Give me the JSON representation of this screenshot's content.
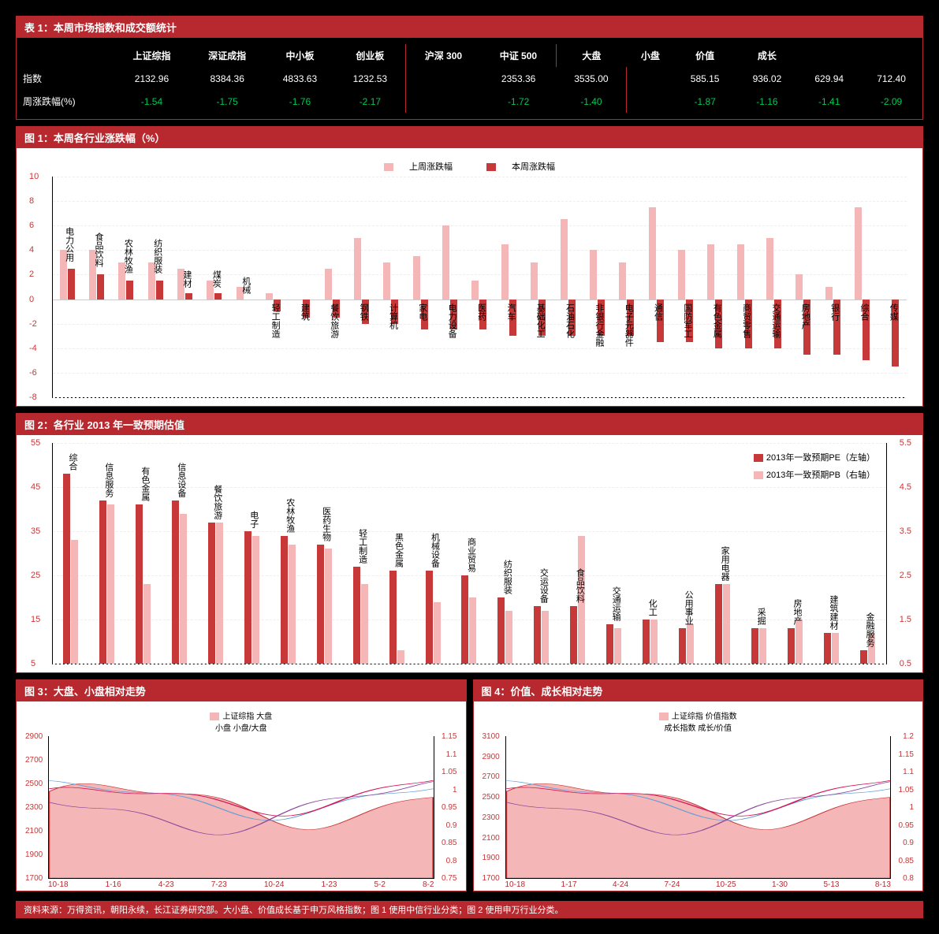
{
  "table1": {
    "title": "表 1：本周市场指数和成交额统计",
    "sections": [
      {
        "cols": [
          "上证综指",
          "深证成指",
          "中小板",
          "创业板"
        ],
        "rows": [
          [
            "指数",
            "2132.96",
            "8384.36",
            "4833.63",
            "1232.53"
          ],
          [
            "周涨跌幅(%)",
            "-1.54",
            "-1.75",
            "-1.76",
            "-2.17"
          ]
        ]
      },
      {
        "cols": [
          "沪深 300",
          "中证 500"
        ],
        "rows": [
          [
            "",
            "2353.36",
            "3535.00"
          ],
          [
            "",
            "-1.72",
            "-1.40"
          ]
        ]
      },
      {
        "cols": [
          "大盘",
          "小盘",
          "价值",
          "成长"
        ],
        "rows": [
          [
            "",
            "585.15",
            "936.02",
            "629.94",
            "712.40"
          ],
          [
            "",
            "-1.87",
            "-1.16",
            "-1.41",
            "-2.09"
          ]
        ]
      }
    ]
  },
  "chart1": {
    "title": "图 1：本周各行业涨跌幅（%）",
    "legend": [
      "上周涨跌幅",
      "本周涨跌幅"
    ],
    "colors": {
      "prev": "#f4b6b6",
      "curr": "#c73838"
    },
    "ylim": [
      -8,
      10
    ],
    "yticks": [
      -8,
      -6,
      -4,
      -2,
      0,
      2,
      4,
      6,
      8,
      10
    ],
    "categories": [
      "电力公用",
      "食品饮料",
      "农林牧渔",
      "纺织服装",
      "建材",
      "煤炭",
      "机械",
      "轻工制造",
      "建筑",
      "餐饮旅游",
      "钢铁",
      "计算机",
      "家电",
      "电力设备",
      "医药",
      "汽车",
      "基础化工",
      "石油石化",
      "非银行金融",
      "电子元器件",
      "通信",
      "国防军工",
      "有色金属",
      "商贸零售",
      "交通运输",
      "房地产",
      "银行",
      "综合",
      "传媒"
    ],
    "prev": [
      4,
      4,
      3,
      3,
      2.5,
      1.5,
      1,
      0.5,
      0,
      2.5,
      5,
      3,
      3.5,
      6,
      1.5,
      4.5,
      3,
      6.5,
      4,
      3,
      7.5,
      4,
      4.5,
      4.5,
      5,
      2,
      1,
      7.5,
      0
    ],
    "curr": [
      2.5,
      2,
      1.5,
      1.5,
      0.5,
      0.5,
      0,
      -1,
      -1.5,
      -1.5,
      -2,
      -2,
      -2.5,
      -2.5,
      -2.5,
      -3,
      -3,
      -3,
      -3,
      -3,
      -3.5,
      -3.5,
      -4,
      -4,
      -4,
      -4.5,
      -4.5,
      -5,
      -5.5
    ]
  },
  "chart2": {
    "title": "图 2：各行业 2013 年一致预期估值",
    "legend": [
      "2013年一致预期PE（左轴）",
      "2013年一致预期PB（右轴）"
    ],
    "colors": {
      "pe": "#c73838",
      "pb": "#f4b6b6"
    },
    "ylim_left": [
      5,
      55
    ],
    "yticks_left": [
      5,
      15,
      25,
      35,
      45,
      55
    ],
    "ylim_right": [
      0.5,
      5.5
    ],
    "yticks_right": [
      0.5,
      1.5,
      2.5,
      3.5,
      4.5,
      5.5
    ],
    "categories": [
      "综合",
      "信息服务",
      "有色金属",
      "信息设备",
      "餐饮旅游",
      "电子",
      "农林牧渔",
      "医药生物",
      "轻工制造",
      "黑色金属",
      "机械设备",
      "商业贸易",
      "纺织服装",
      "交运设备",
      "食品饮料",
      "交通运输",
      "化工",
      "公用事业",
      "家用电器",
      "采掘",
      "房地产",
      "建筑建材",
      "金融服务"
    ],
    "pe": [
      48,
      42,
      41,
      42,
      37,
      35,
      34,
      32,
      27,
      26,
      26,
      25,
      20,
      18,
      18,
      14,
      15,
      13,
      23,
      13,
      13,
      12,
      8
    ],
    "pb": [
      3.3,
      4.1,
      2.3,
      3.9,
      3.7,
      3.4,
      3.2,
      3.1,
      2.3,
      0.8,
      1.9,
      2.0,
      1.7,
      1.7,
      3.4,
      1.3,
      1.5,
      1.4,
      2.3,
      1.3,
      1.5,
      1.2,
      1.2
    ]
  },
  "chart3": {
    "title": "图 3：大盘、小盘相对走势",
    "legend": [
      "上证综指",
      "大盘",
      "小盘",
      "小盘/大盘"
    ],
    "colors": {
      "area": "#f4b6b6",
      "l1": "#c73838",
      "l2": "#5b9bd5",
      "l3": "#8b4a9c",
      "ratio": "#d4145a"
    },
    "ylim_left": [
      1700,
      2900
    ],
    "yticks_left": [
      1700,
      1900,
      2100,
      2300,
      2500,
      2700,
      2900
    ],
    "ylim_right": [
      0.75,
      1.15
    ],
    "yticks_right": [
      0.75,
      0.8,
      0.85,
      0.9,
      0.95,
      1.0,
      1.05,
      1.1,
      1.15
    ],
    "xticks": [
      "10-18",
      "1-16",
      "4-23",
      "7-23",
      "10-24",
      "1-23",
      "5-2",
      "8-2"
    ]
  },
  "chart4": {
    "title": "图 4：价值、成长相对走势",
    "legend": [
      "上证综指",
      "价值指数",
      "成长指数",
      "成长/价值"
    ],
    "colors": {
      "area": "#f4b6b6",
      "l1": "#c73838",
      "l2": "#5b9bd5",
      "l3": "#8b4a9c",
      "ratio": "#d4145a"
    },
    "ylim_left": [
      1700,
      3100
    ],
    "yticks_left": [
      1700,
      1900,
      2100,
      2300,
      2500,
      2700,
      2900,
      3100
    ],
    "ylim_right": [
      0.8,
      1.2
    ],
    "yticks_right": [
      0.8,
      0.85,
      0.9,
      0.95,
      1.0,
      1.05,
      1.1,
      1.15,
      1.2
    ],
    "xticks": [
      "10-18",
      "1-17",
      "4-24",
      "7-24",
      "10-25",
      "1-30",
      "5-13",
      "8-13"
    ]
  },
  "footnote": "资料来源：万得资讯，朝阳永续，长江证券研究部。大小盘、价值成长基于申万风格指数；图 1 使用中信行业分类；图 2 使用申万行业分类。"
}
